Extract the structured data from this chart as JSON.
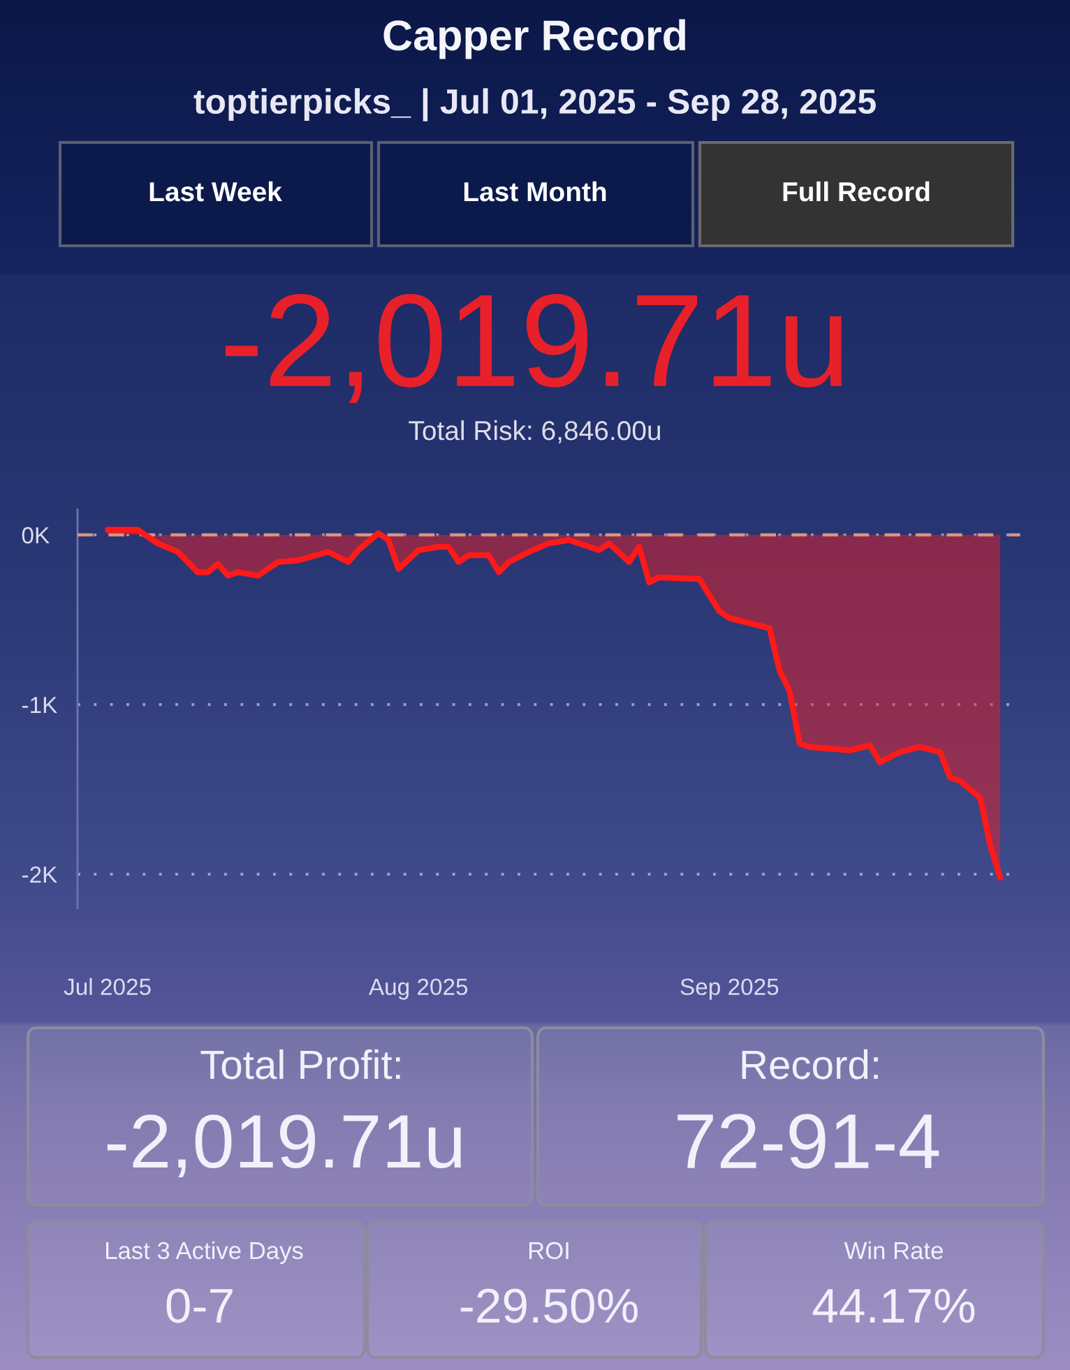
{
  "chart_data": {
    "type": "area",
    "title": "Capper Record",
    "subtitle": "toptierpicks_ | Jul 01, 2025 - Sep 28, 2025",
    "x": [
      "2025-07-01",
      "2025-07-04",
      "2025-07-06",
      "2025-07-08",
      "2025-07-10",
      "2025-07-11",
      "2025-07-12",
      "2025-07-13",
      "2025-07-14",
      "2025-07-16",
      "2025-07-18",
      "2025-07-20",
      "2025-07-23",
      "2025-07-25",
      "2025-07-26",
      "2025-07-28",
      "2025-07-29",
      "2025-07-30",
      "2025-08-01",
      "2025-08-03",
      "2025-08-04",
      "2025-08-05",
      "2025-08-06",
      "2025-08-08",
      "2025-08-09",
      "2025-08-10",
      "2025-08-12",
      "2025-08-14",
      "2025-08-16",
      "2025-08-19",
      "2025-08-20",
      "2025-08-22",
      "2025-08-23",
      "2025-08-24",
      "2025-08-25",
      "2025-08-29",
      "2025-08-31",
      "2025-09-01",
      "2025-09-05",
      "2025-09-06",
      "2025-09-07",
      "2025-09-08",
      "2025-09-09",
      "2025-09-13",
      "2025-09-15",
      "2025-09-16",
      "2025-09-18",
      "2025-09-20",
      "2025-09-22",
      "2025-09-23",
      "2025-09-24",
      "2025-09-26",
      "2025-09-27",
      "2025-09-28"
    ],
    "values": [
      30,
      30,
      -50,
      -100,
      -220,
      -220,
      -170,
      -240,
      -220,
      -240,
      -160,
      -150,
      -100,
      -160,
      -90,
      10,
      -30,
      -200,
      -90,
      -70,
      -70,
      -160,
      -120,
      -120,
      -220,
      -160,
      -100,
      -50,
      -30,
      -90,
      -50,
      -160,
      -70,
      -280,
      -250,
      -260,
      -450,
      -490,
      -550,
      -800,
      -920,
      -1230,
      -1250,
      -1270,
      -1240,
      -1340,
      -1280,
      -1250,
      -1280,
      -1430,
      -1450,
      -1550,
      -1830,
      -2020
    ],
    "color": "#ff1a1a",
    "xlim": [
      "2025-06-28",
      "2025-09-30"
    ],
    "xticks": [
      {
        "value": "2025-07-01",
        "label": "Jul 2025"
      },
      {
        "value": "2025-08-01",
        "label": "Aug 2025"
      },
      {
        "value": "2025-09-01",
        "label": "Sep 2025"
      }
    ],
    "ylim": [
      -2200,
      150
    ],
    "yticks": [
      {
        "value": 0,
        "label": "0K"
      },
      {
        "value": -1000,
        "label": "-1K"
      },
      {
        "value": -2000,
        "label": "-2K"
      }
    ],
    "grid": "y",
    "ref_lines": [
      {
        "axis": "y",
        "value": 0,
        "color": "#d8957e",
        "line_style": "dashed"
      }
    ],
    "annotations": [
      "Last Week",
      "Last Month",
      "Full Record",
      "-2,019.71u",
      "Total Risk: 6,846.00u",
      "Total Profit:",
      "-2,019.71u",
      "Record:",
      "72-91-4",
      "Last 3 Active Days",
      "0-7",
      "ROI",
      "-29.50%",
      "Win Rate",
      "44.17%"
    ]
  }
}
